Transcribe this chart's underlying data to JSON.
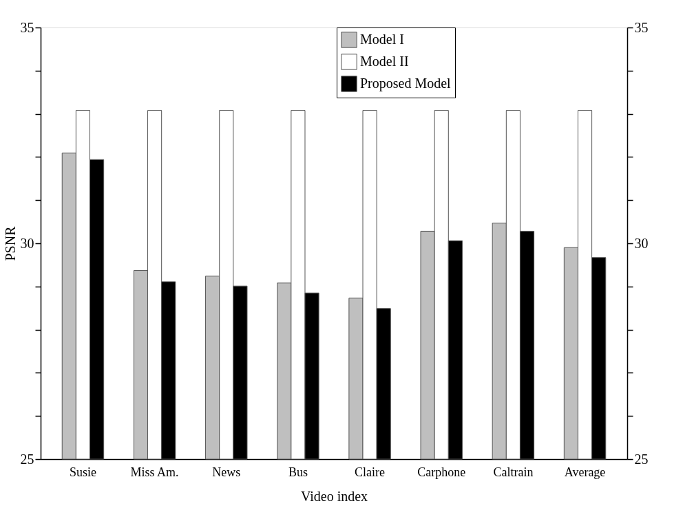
{
  "chart_data": {
    "type": "bar",
    "xlabel": "Video index",
    "ylabel": "PSNR",
    "categories": [
      "Susie",
      "Miss Am.",
      "News",
      "Bus",
      "Claire",
      "Carphone",
      "Caltrain",
      "Average"
    ],
    "series": [
      {
        "name": "Model I",
        "color": "#bfbfbf",
        "values": [
          32.09,
          29.37,
          29.24,
          29.08,
          28.73,
          30.28,
          30.47,
          29.9
        ]
      },
      {
        "name": "Model II",
        "color": "#ffffff",
        "values": [
          33.08,
          33.08,
          33.08,
          33.08,
          33.08,
          33.08,
          33.08,
          33.08
        ]
      },
      {
        "name": "Proposed Model",
        "color": "#000000",
        "values": [
          31.94,
          29.11,
          29.01,
          28.85,
          28.49,
          30.06,
          30.28,
          29.67
        ]
      }
    ],
    "ylim": [
      25,
      35
    ],
    "yticks": [
      25,
      {
        "value": 26,
        "label": null
      },
      {
        "value": 27,
        "label": null
      },
      {
        "value": 28,
        "label": null
      },
      {
        "value": 29,
        "label": null
      },
      30,
      {
        "value": 31,
        "label": null
      },
      {
        "value": 32,
        "label": null
      },
      {
        "value": 33,
        "label": null
      },
      {
        "value": 34,
        "label": null
      },
      35
    ],
    "y2lim": [
      25,
      35
    ],
    "y2ticks": [
      25,
      {
        "value": 26,
        "label": null
      },
      {
        "value": 27,
        "label": null
      },
      {
        "value": 28,
        "label": null
      },
      {
        "value": 29,
        "label": null
      },
      30,
      {
        "value": 31,
        "label": null
      },
      {
        "value": 32,
        "label": null
      },
      {
        "value": 33,
        "label": null
      },
      {
        "value": 34,
        "label": null
      },
      35
    ],
    "grid": false,
    "legend": "top right"
  }
}
